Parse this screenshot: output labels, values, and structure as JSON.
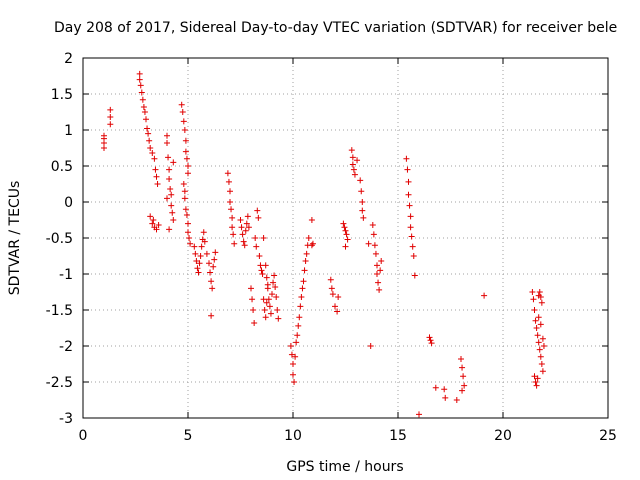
{
  "chart_data": {
    "type": "scatter",
    "title": "Day 208 of 2017, Sidereal Day-to-day VTEC variation (SDTVAR) for receiver bele",
    "xlabel": "GPS time / hours",
    "ylabel": "SDTVAR / TECUs",
    "xlim": [
      0,
      25
    ],
    "ylim": [
      -3,
      2
    ],
    "xticks": [
      0,
      5,
      10,
      15,
      20,
      25
    ],
    "yticks": [
      -3,
      -2.5,
      -2,
      -1.5,
      -1,
      -0.5,
      0,
      0.5,
      1,
      1.5,
      2
    ],
    "grid": true,
    "marker": "+",
    "series": [
      {
        "name": "SDTVAR",
        "color": "#e00000",
        "points": [
          [
            1.0,
            0.92
          ],
          [
            1.0,
            0.82
          ],
          [
            1.0,
            0.75
          ],
          [
            1.0,
            0.88
          ],
          [
            1.3,
            1.28
          ],
          [
            1.3,
            1.18
          ],
          [
            1.3,
            1.08
          ],
          [
            2.7,
            1.78
          ],
          [
            2.7,
            1.7
          ],
          [
            2.75,
            1.62
          ],
          [
            2.8,
            1.52
          ],
          [
            2.85,
            1.42
          ],
          [
            2.9,
            1.32
          ],
          [
            2.95,
            1.25
          ],
          [
            3.0,
            1.15
          ],
          [
            3.05,
            1.02
          ],
          [
            3.1,
            0.95
          ],
          [
            3.15,
            0.85
          ],
          [
            3.2,
            0.75
          ],
          [
            3.3,
            0.68
          ],
          [
            3.4,
            0.6
          ],
          [
            3.45,
            0.45
          ],
          [
            3.5,
            0.35
          ],
          [
            3.55,
            0.25
          ],
          [
            3.2,
            -0.2
          ],
          [
            3.3,
            -0.3
          ],
          [
            3.35,
            -0.25
          ],
          [
            3.4,
            -0.35
          ],
          [
            3.5,
            -0.38
          ],
          [
            3.6,
            -0.32
          ],
          [
            4.0,
            0.92
          ],
          [
            4.0,
            0.82
          ],
          [
            4.05,
            0.62
          ],
          [
            4.1,
            0.45
          ],
          [
            4.1,
            0.32
          ],
          [
            4.15,
            0.18
          ],
          [
            4.2,
            0.1
          ],
          [
            4.2,
            -0.05
          ],
          [
            4.25,
            -0.15
          ],
          [
            4.3,
            -0.25
          ],
          [
            4.1,
            -0.38
          ],
          [
            4.0,
            0.05
          ],
          [
            4.3,
            0.55
          ],
          [
            4.7,
            1.35
          ],
          [
            4.75,
            1.25
          ],
          [
            4.8,
            1.12
          ],
          [
            4.85,
            1.0
          ],
          [
            4.9,
            0.85
          ],
          [
            4.9,
            0.7
          ],
          [
            4.95,
            0.6
          ],
          [
            5.0,
            0.5
          ],
          [
            5.0,
            0.4
          ],
          [
            4.8,
            0.25
          ],
          [
            4.85,
            0.15
          ],
          [
            4.85,
            0.05
          ],
          [
            4.9,
            -0.1
          ],
          [
            4.95,
            -0.18
          ],
          [
            5.0,
            -0.3
          ],
          [
            5.0,
            -0.42
          ],
          [
            5.05,
            -0.5
          ],
          [
            5.1,
            -0.58
          ],
          [
            5.3,
            -0.62
          ],
          [
            5.35,
            -0.72
          ],
          [
            5.4,
            -0.82
          ],
          [
            5.45,
            -0.92
          ],
          [
            5.5,
            -0.98
          ],
          [
            5.55,
            -0.85
          ],
          [
            5.6,
            -0.75
          ],
          [
            5.65,
            -0.62
          ],
          [
            5.7,
            -0.52
          ],
          [
            5.75,
            -0.42
          ],
          [
            5.8,
            -0.55
          ],
          [
            5.9,
            -0.72
          ],
          [
            6.0,
            -0.85
          ],
          [
            6.05,
            -0.98
          ],
          [
            6.1,
            -1.1
          ],
          [
            6.15,
            -1.2
          ],
          [
            6.2,
            -0.9
          ],
          [
            6.25,
            -0.8
          ],
          [
            6.3,
            -0.7
          ],
          [
            6.1,
            -1.58
          ],
          [
            6.9,
            0.4
          ],
          [
            6.95,
            0.28
          ],
          [
            7.0,
            0.15
          ],
          [
            7.0,
            0.0
          ],
          [
            7.05,
            -0.1
          ],
          [
            7.1,
            -0.22
          ],
          [
            7.1,
            -0.35
          ],
          [
            7.15,
            -0.45
          ],
          [
            7.2,
            -0.58
          ],
          [
            7.5,
            -0.25
          ],
          [
            7.55,
            -0.35
          ],
          [
            7.6,
            -0.45
          ],
          [
            7.65,
            -0.55
          ],
          [
            7.7,
            -0.6
          ],
          [
            7.75,
            -0.4
          ],
          [
            7.8,
            -0.3
          ],
          [
            7.85,
            -0.2
          ],
          [
            7.9,
            -0.35
          ],
          [
            8.0,
            -1.2
          ],
          [
            8.05,
            -1.35
          ],
          [
            8.1,
            -1.5
          ],
          [
            8.15,
            -1.68
          ],
          [
            8.2,
            -0.5
          ],
          [
            8.25,
            -0.62
          ],
          [
            8.3,
            -0.12
          ],
          [
            8.35,
            -0.22
          ],
          [
            8.4,
            -0.75
          ],
          [
            8.45,
            -0.88
          ],
          [
            8.5,
            -0.95
          ],
          [
            8.55,
            -1.0
          ],
          [
            8.6,
            -0.5
          ],
          [
            8.7,
            -0.88
          ],
          [
            8.75,
            -1.05
          ],
          [
            8.8,
            -1.2
          ],
          [
            8.85,
            -1.35
          ],
          [
            8.9,
            -1.45
          ],
          [
            8.95,
            -1.55
          ],
          [
            9.0,
            -1.28
          ],
          [
            9.05,
            -1.12
          ],
          [
            9.1,
            -1.02
          ],
          [
            9.15,
            -1.18
          ],
          [
            9.2,
            -1.32
          ],
          [
            9.25,
            -1.5
          ],
          [
            9.3,
            -1.62
          ],
          [
            8.6,
            -1.35
          ],
          [
            8.65,
            -1.5
          ],
          [
            8.7,
            -1.6
          ],
          [
            8.75,
            -1.4
          ],
          [
            8.8,
            -1.15
          ],
          [
            9.9,
            -2.0
          ],
          [
            9.95,
            -2.12
          ],
          [
            10.0,
            -2.25
          ],
          [
            10.0,
            -2.4
          ],
          [
            10.05,
            -2.5
          ],
          [
            10.1,
            -2.15
          ],
          [
            10.15,
            -1.95
          ],
          [
            10.2,
            -1.85
          ],
          [
            10.25,
            -1.72
          ],
          [
            10.3,
            -1.6
          ],
          [
            10.35,
            -1.45
          ],
          [
            10.4,
            -1.32
          ],
          [
            10.45,
            -1.2
          ],
          [
            10.5,
            -1.1
          ],
          [
            10.55,
            -0.95
          ],
          [
            10.6,
            -0.82
          ],
          [
            10.65,
            -0.72
          ],
          [
            10.7,
            -0.6
          ],
          [
            10.75,
            -0.5
          ],
          [
            10.9,
            -0.6
          ],
          [
            10.95,
            -0.58
          ],
          [
            10.9,
            -0.25
          ],
          [
            11.8,
            -1.08
          ],
          [
            11.85,
            -1.2
          ],
          [
            11.9,
            -1.28
          ],
          [
            12.0,
            -1.45
          ],
          [
            12.1,
            -1.52
          ],
          [
            12.15,
            -1.32
          ],
          [
            12.4,
            -0.3
          ],
          [
            12.45,
            -0.35
          ],
          [
            12.5,
            -0.4
          ],
          [
            12.55,
            -0.45
          ],
          [
            12.6,
            -0.52
          ],
          [
            12.5,
            -0.62
          ],
          [
            12.8,
            0.72
          ],
          [
            12.85,
            0.62
          ],
          [
            12.85,
            0.52
          ],
          [
            12.9,
            0.45
          ],
          [
            12.95,
            0.38
          ],
          [
            13.05,
            0.58
          ],
          [
            13.2,
            0.3
          ],
          [
            13.25,
            0.15
          ],
          [
            13.3,
            0.0
          ],
          [
            13.3,
            -0.12
          ],
          [
            13.35,
            -0.22
          ],
          [
            13.6,
            -0.58
          ],
          [
            13.7,
            -2.0
          ],
          [
            13.8,
            -0.32
          ],
          [
            13.85,
            -0.45
          ],
          [
            13.9,
            -0.6
          ],
          [
            13.95,
            -0.72
          ],
          [
            14.0,
            -0.88
          ],
          [
            14.0,
            -1.0
          ],
          [
            14.05,
            -1.12
          ],
          [
            14.1,
            -1.22
          ],
          [
            14.15,
            -0.95
          ],
          [
            14.2,
            -0.82
          ],
          [
            15.4,
            0.6
          ],
          [
            15.45,
            0.45
          ],
          [
            15.5,
            0.28
          ],
          [
            15.5,
            0.1
          ],
          [
            15.55,
            -0.05
          ],
          [
            15.6,
            -0.2
          ],
          [
            15.6,
            -0.35
          ],
          [
            15.65,
            -0.48
          ],
          [
            15.7,
            -0.62
          ],
          [
            15.75,
            -0.75
          ],
          [
            15.8,
            -1.02
          ],
          [
            16.0,
            -2.95
          ],
          [
            16.5,
            -1.88
          ],
          [
            16.55,
            -1.92
          ],
          [
            16.6,
            -1.96
          ],
          [
            16.8,
            -2.58
          ],
          [
            17.2,
            -2.6
          ],
          [
            17.25,
            -2.72
          ],
          [
            17.8,
            -2.75
          ],
          [
            18.0,
            -2.18
          ],
          [
            18.05,
            -2.3
          ],
          [
            18.1,
            -2.42
          ],
          [
            18.15,
            -2.55
          ],
          [
            18.05,
            -2.62
          ],
          [
            19.1,
            -1.3
          ],
          [
            21.4,
            -1.25
          ],
          [
            21.45,
            -1.35
          ],
          [
            21.5,
            -1.5
          ],
          [
            21.55,
            -1.65
          ],
          [
            21.6,
            -1.75
          ],
          [
            21.65,
            -1.85
          ],
          [
            21.7,
            -1.95
          ],
          [
            21.75,
            -2.05
          ],
          [
            21.8,
            -2.15
          ],
          [
            21.85,
            -2.25
          ],
          [
            21.9,
            -2.35
          ],
          [
            21.5,
            -2.42
          ],
          [
            21.55,
            -2.5
          ],
          [
            21.6,
            -2.55
          ],
          [
            21.65,
            -2.45
          ],
          [
            21.7,
            -1.3
          ],
          [
            21.75,
            -1.25
          ],
          [
            21.8,
            -1.32
          ],
          [
            21.85,
            -1.4
          ],
          [
            21.9,
            -1.9
          ],
          [
            21.95,
            -2.0
          ],
          [
            21.7,
            -1.6
          ],
          [
            21.8,
            -1.7
          ]
        ]
      }
    ]
  }
}
